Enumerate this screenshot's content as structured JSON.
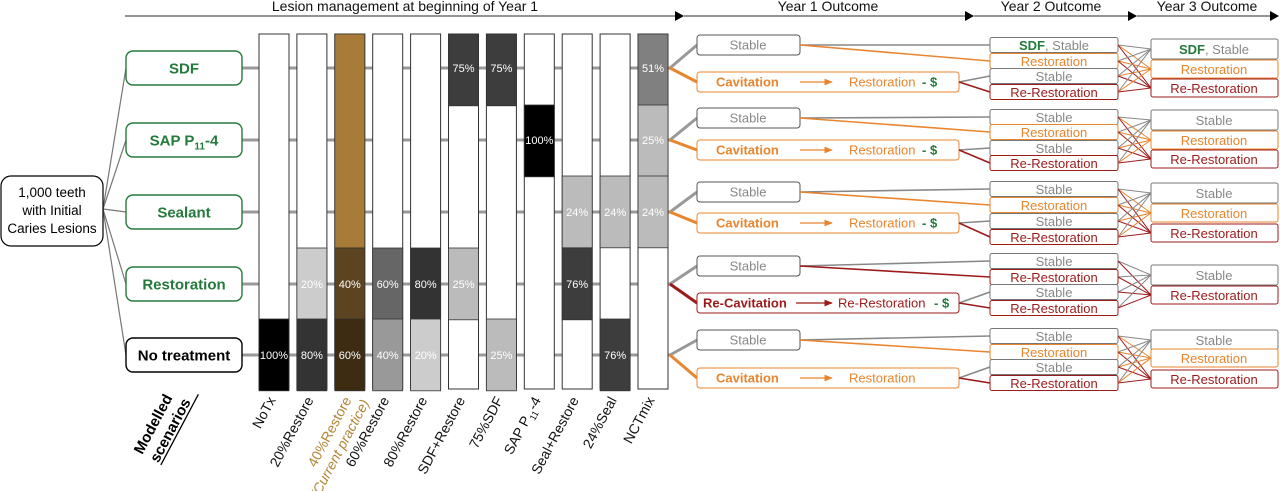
{
  "colors": {
    "green": "#237a3b",
    "orange": "#e8852e",
    "darkred": "#9c1a1a",
    "gray": "#888888",
    "tan": "#b08535",
    "black": "#000000"
  },
  "header": {
    "lesion_management": "Lesion management at beginning of Year 1",
    "year1": "Year 1 Outcome",
    "year2": "Year 2 Outcome",
    "year3": "Year 3 Outcome"
  },
  "root_label": [
    "1,000 teeth",
    "with Initial",
    "Caries Lesions"
  ],
  "treatments": [
    {
      "key": "sdf",
      "label": "SDF"
    },
    {
      "key": "sap",
      "label": "SAP P",
      "sub": "11",
      "suffix": "-4"
    },
    {
      "key": "sealant",
      "label": "Sealant"
    },
    {
      "key": "restoration",
      "label": "Restoration"
    },
    {
      "key": "notx",
      "label": "No treatment"
    }
  ],
  "scenarios_title": [
    "Modelled",
    "scenarios"
  ],
  "scenarios": [
    {
      "label": "NoTx",
      "segments": [
        {
          "row": 4,
          "pct": "100%",
          "fill": "#000000"
        }
      ]
    },
    {
      "label": "20%Restore",
      "segments": [
        {
          "row": 3,
          "pct": "20%",
          "fill": "#cccccc"
        },
        {
          "row": 4,
          "pct": "80%",
          "fill": "#333333"
        }
      ]
    },
    {
      "label": "40%Restore",
      "label2": "(Current practice)",
      "highlight": true,
      "segments": [
        {
          "row": 0,
          "pct": "",
          "fill": "#a87c38",
          "span": 3
        },
        {
          "row": 3,
          "pct": "40%",
          "fill": "#5c4420"
        },
        {
          "row": 4,
          "pct": "60%",
          "fill": "#3d2c12"
        }
      ]
    },
    {
      "label": "60%Restore",
      "segments": [
        {
          "row": 3,
          "pct": "60%",
          "fill": "#666666"
        },
        {
          "row": 4,
          "pct": "40%",
          "fill": "#999999"
        }
      ]
    },
    {
      "label": "80%Restore",
      "segments": [
        {
          "row": 3,
          "pct": "80%",
          "fill": "#333333"
        },
        {
          "row": 4,
          "pct": "20%",
          "fill": "#cccccc"
        }
      ]
    },
    {
      "label": "SDF+Restore",
      "segments": [
        {
          "row": 0,
          "pct": "75%",
          "fill": "#3d3d3d"
        },
        {
          "row": 3,
          "pct": "25%",
          "fill": "#bbbbbb"
        }
      ]
    },
    {
      "label": "75%SDF",
      "segments": [
        {
          "row": 0,
          "pct": "75%",
          "fill": "#3d3d3d"
        },
        {
          "row": 4,
          "pct": "25%",
          "fill": "#bbbbbb"
        }
      ]
    },
    {
      "label": "SAP P",
      "sub": "11",
      "suffix": "-4",
      "segments": [
        {
          "row": 1,
          "pct": "100%",
          "fill": "#000000"
        }
      ]
    },
    {
      "label": "Seal+Restore",
      "segments": [
        {
          "row": 2,
          "pct": "24%",
          "fill": "#bbbbbb"
        },
        {
          "row": 3,
          "pct": "76%",
          "fill": "#3d3d3d"
        }
      ]
    },
    {
      "label": "24%Seal",
      "segments": [
        {
          "row": 2,
          "pct": "24%",
          "fill": "#bbbbbb"
        },
        {
          "row": 4,
          "pct": "76%",
          "fill": "#3d3d3d"
        }
      ]
    },
    {
      "label": "NCTmix",
      "segments": [
        {
          "row": 0,
          "pct": "51%",
          "fill": "#808080"
        },
        {
          "row": 1,
          "pct": "25%",
          "fill": "#bbbbbb"
        },
        {
          "row": 2,
          "pct": "24%",
          "fill": "#bbbbbb"
        }
      ]
    }
  ],
  "year1": {
    "stable": "Stable",
    "cavitation": "Cavitation",
    "recavitation": "Re-Cavitation",
    "restoration": "Restoration",
    "rerestoration": "Re-Restoration",
    "cost": "- $"
  },
  "year2": {
    "sdf": "SDF",
    "stable_suffix": ", Stable",
    "stable": "Stable",
    "restoration": "Restoration",
    "rerestoration": "Re-Restoration"
  },
  "year3": {
    "sdf": "SDF",
    "stable_suffix": ", Stable",
    "stable": "Stable",
    "restoration": "Restoration",
    "rerestoration": "Re-Restoration"
  }
}
